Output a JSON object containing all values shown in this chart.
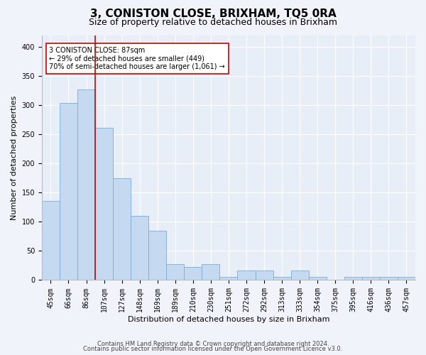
{
  "title": "3, CONISTON CLOSE, BRIXHAM, TQ5 0RA",
  "subtitle": "Size of property relative to detached houses in Brixham",
  "xlabel": "Distribution of detached houses by size in Brixham",
  "ylabel": "Number of detached properties",
  "categories": [
    "45sqm",
    "66sqm",
    "86sqm",
    "107sqm",
    "127sqm",
    "148sqm",
    "169sqm",
    "189sqm",
    "210sqm",
    "230sqm",
    "251sqm",
    "272sqm",
    "292sqm",
    "313sqm",
    "333sqm",
    "354sqm",
    "375sqm",
    "395sqm",
    "416sqm",
    "436sqm",
    "457sqm"
  ],
  "values": [
    136,
    304,
    327,
    262,
    175,
    110,
    85,
    27,
    22,
    27,
    5,
    16,
    16,
    5,
    16,
    5,
    0,
    5,
    5,
    5,
    5
  ],
  "bar_color": "#c5d9f0",
  "bar_edge_color": "#7aacda",
  "vline_x": 2.5,
  "vline_color": "#cc0000",
  "annotation_text": "3 CONISTON CLOSE: 87sqm\n← 29% of detached houses are smaller (449)\n70% of semi-detached houses are larger (1,061) →",
  "annotation_box_color": "#ffffff",
  "annotation_box_edge": "#cc0000",
  "ylim": [
    0,
    420
  ],
  "yticks": [
    0,
    50,
    100,
    150,
    200,
    250,
    300,
    350,
    400
  ],
  "footer_line1": "Contains HM Land Registry data © Crown copyright and database right 2024.",
  "footer_line2": "Contains public sector information licensed under the Open Government Licence v3.0.",
  "bg_color": "#f0f4fa",
  "plot_bg_color": "#e8eef8",
  "grid_color": "#ffffff",
  "title_fontsize": 11,
  "subtitle_fontsize": 9,
  "ylabel_fontsize": 8,
  "xlabel_fontsize": 8,
  "tick_fontsize": 7,
  "annotation_fontsize": 7,
  "footer_fontsize": 6
}
